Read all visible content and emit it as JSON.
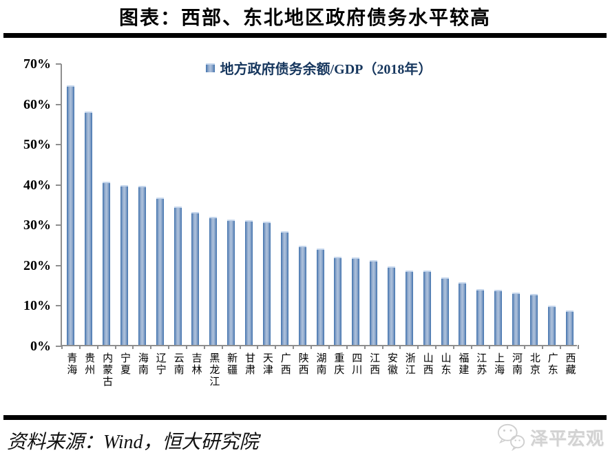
{
  "title": "图表：西部、东北地区政府债务水平较高",
  "source": "资料来源：Wind，恒大研究院",
  "logo": {
    "icon": "wechat-bubbles-icon",
    "text": "泽平宏观"
  },
  "colors": {
    "bar_edge": "#3E70AC",
    "bar_center": "#AFC2DC",
    "bar_top_cap": "#C5D6EC",
    "legend_text": "#17375E",
    "axis": "#8e8e8e",
    "divider": "#000000",
    "logo_gray": "#d2d2d2"
  },
  "chart_data": {
    "type": "bar",
    "title": "图表：西部、东北地区政府债务水平较高",
    "legend": [
      "地方政府债务余额/GDP（2018年）"
    ],
    "legend_position": "top-center",
    "xlabel": "",
    "ylabel": "",
    "ylim": [
      0,
      70
    ],
    "ytick_step": 10,
    "ytick_format": "percent",
    "grid": false,
    "categories": [
      "青海",
      "贵州",
      "内蒙古",
      "宁夏",
      "海南",
      "辽宁",
      "云南",
      "吉林",
      "黑龙江",
      "新疆",
      "甘肃",
      "天津",
      "广西",
      "陕西",
      "湖南",
      "重庆",
      "四川",
      "江西",
      "安徽",
      "浙江",
      "山西",
      "山东",
      "福建",
      "江苏",
      "上海",
      "河南",
      "北京",
      "广东",
      "西藏"
    ],
    "values": [
      64.4,
      57.9,
      40.5,
      39.6,
      39.4,
      36.6,
      34.3,
      33.0,
      31.8,
      31.1,
      30.9,
      30.5,
      28.1,
      24.6,
      23.9,
      21.8,
      21.7,
      21.0,
      19.5,
      18.5,
      18.4,
      16.8,
      15.5,
      13.9,
      13.7,
      12.9,
      12.6,
      9.7,
      8.5
    ]
  }
}
